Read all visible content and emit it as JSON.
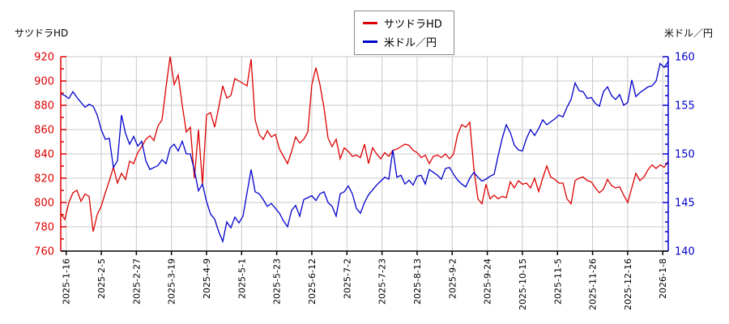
{
  "page": {
    "left_corner_label": "サツドラHD",
    "right_corner_label": "米ドル／円"
  },
  "legend": {
    "items": [
      {
        "label": "サツドラHD",
        "color": "#dd0000"
      },
      {
        "label": "米ドル／円",
        "color": "#0000cc"
      }
    ]
  },
  "chart_data": {
    "type": "line",
    "title": "",
    "grid": true,
    "legend_position": "top-center",
    "x_tick_labels": [
      "2025-1-16",
      "2025-2-5",
      "2025-2-27",
      "2025-3-19",
      "2025-4-9",
      "2025-5-1",
      "2025-5-23",
      "2025-6-12",
      "2025-7-2",
      "2025-7-23",
      "2025-8-13",
      "2025-9-2",
      "2025-9-24",
      "2025-10-15",
      "2025-11-5",
      "2025-11-26",
      "2025-12-16",
      "2026-1-8"
    ],
    "left_axis": {
      "label": "サツドラHD",
      "min": 760,
      "max": 920,
      "tick_step": 20,
      "minor_step": 10,
      "color": "#dd0000"
    },
    "right_axis": {
      "label": "米ドル／円",
      "min": 140,
      "max": 160,
      "tick_step": 5,
      "minor_step": 1,
      "color": "#0000cc"
    },
    "series": [
      {
        "name": "サツドラHD",
        "axis": "left",
        "color": "#dd0000",
        "values": [
          791,
          786,
          800,
          808,
          810,
          801,
          807,
          805,
          776,
          790,
          797,
          808,
          818,
          829,
          816,
          824,
          819,
          834,
          832,
          841,
          846,
          852,
          855,
          851,
          863,
          868,
          895,
          920,
          897,
          905,
          880,
          858,
          862,
          820,
          860,
          815,
          872,
          874,
          862,
          878,
          896,
          886,
          888,
          902,
          900,
          898,
          896,
          918,
          868,
          856,
          852,
          859,
          854,
          856,
          844,
          838,
          832,
          842,
          854,
          849,
          852,
          858,
          897,
          911,
          897,
          878,
          853,
          846,
          852,
          836,
          845,
          842,
          838,
          839,
          837,
          848,
          832,
          845,
          840,
          836,
          841,
          838,
          843,
          844,
          846,
          848,
          847,
          843,
          841,
          837,
          839,
          832,
          838,
          839,
          837,
          840,
          836,
          840,
          856,
          864,
          862,
          866,
          828,
          803,
          799,
          815,
          803,
          806,
          803,
          805,
          804,
          817,
          812,
          818,
          815,
          816,
          812,
          820,
          809,
          820,
          830,
          821,
          819,
          816,
          816,
          803,
          799,
          818,
          820,
          821,
          818,
          817,
          812,
          808,
          811,
          819,
          814,
          812,
          813,
          806,
          800,
          812,
          824,
          818,
          821,
          827,
          831,
          828,
          831,
          829,
          834
        ]
      },
      {
        "name": "米ドル／円",
        "axis": "right",
        "color": "#0000cc",
        "values": [
          156.2,
          156.0,
          155.7,
          156.4,
          155.8,
          155.3,
          154.8,
          155.1,
          154.9,
          154.0,
          152.5,
          151.5,
          151.6,
          148.6,
          149.3,
          154.0,
          152.1,
          151.0,
          151.8,
          150.8,
          151.3,
          149.3,
          148.4,
          148.6,
          148.8,
          149.4,
          149.0,
          150.6,
          151.0,
          150.3,
          151.3,
          150.0,
          150.0,
          148.3,
          146.2,
          146.9,
          145.1,
          143.8,
          143.3,
          142.0,
          141.0,
          143.0,
          142.4,
          143.5,
          142.9,
          143.6,
          146.0,
          148.4,
          146.1,
          145.9,
          145.3,
          144.6,
          144.9,
          144.4,
          143.9,
          143.1,
          142.5,
          144.2,
          144.7,
          143.6,
          145.3,
          145.5,
          145.7,
          145.2,
          145.9,
          146.1,
          145.0,
          144.6,
          143.6,
          145.9,
          146.1,
          146.7,
          145.9,
          144.4,
          143.9,
          145.0,
          145.8,
          146.3,
          146.8,
          147.2,
          147.6,
          147.4,
          150.4,
          147.6,
          147.8,
          146.9,
          147.3,
          146.8,
          147.7,
          147.8,
          146.9,
          148.4,
          148.1,
          147.8,
          147.4,
          148.5,
          148.6,
          147.9,
          147.3,
          146.9,
          146.6,
          147.5,
          148.1,
          147.6,
          147.2,
          147.4,
          147.7,
          147.9,
          149.8,
          151.6,
          153.0,
          152.2,
          150.9,
          150.4,
          150.3,
          151.6,
          152.5,
          151.9,
          152.6,
          153.5,
          153.0,
          153.3,
          153.6,
          154.0,
          153.8,
          154.8,
          155.6,
          157.3,
          156.5,
          156.4,
          155.7,
          155.8,
          155.2,
          154.9,
          156.4,
          156.9,
          156.0,
          155.6,
          156.1,
          155.0,
          155.3,
          157.6,
          155.9,
          156.3,
          156.6,
          156.9,
          157.0,
          157.5,
          159.3,
          158.9,
          159.5
        ]
      }
    ]
  }
}
